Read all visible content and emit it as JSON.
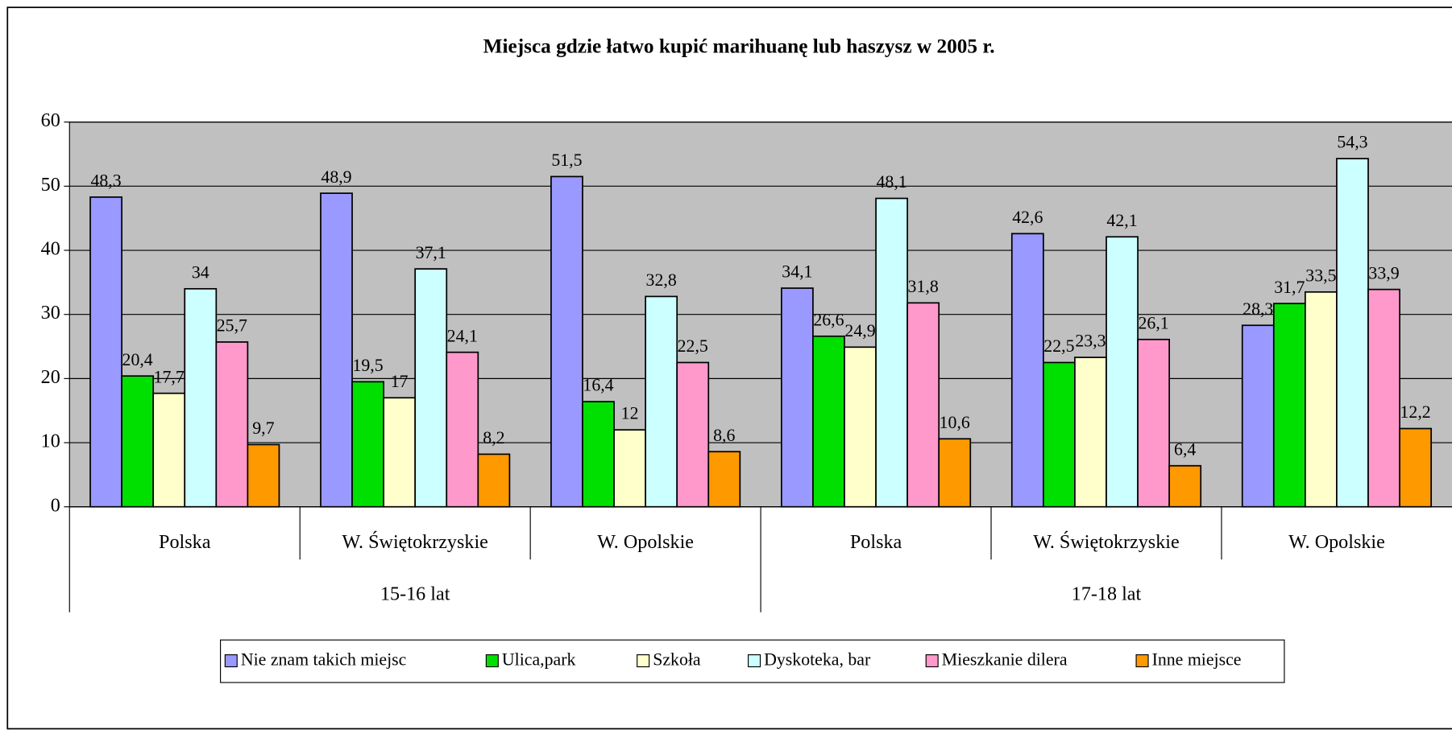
{
  "chart_data": {
    "type": "bar",
    "title": "Miejsca gdzie łatwo kupić marihuanę lub haszysz w 2005 r.",
    "groups": [
      {
        "name": "15-16 lat",
        "categories": [
          "Polska",
          "W. Świętokrzyskie",
          "W. Opolskie"
        ]
      },
      {
        "name": "17-18 lat",
        "categories": [
          "Polska",
          "W. Świętokrzyskie",
          "W. Opolskie"
        ]
      }
    ],
    "series": [
      {
        "name": "Nie znam takich miejsc",
        "color": "#9999ff",
        "values": [
          48.3,
          48.9,
          51.5,
          34.1,
          42.6,
          28.3
        ],
        "value_labels": [
          "48,3",
          "48,9",
          "51,5",
          "34,1",
          "42,6",
          "28,3"
        ]
      },
      {
        "name": "Ulica,park",
        "color": "#00e000",
        "values": [
          20.4,
          19.5,
          16.4,
          26.6,
          22.5,
          31.7
        ],
        "value_labels": [
          "20,4",
          "19,5",
          "16,4",
          "26,6",
          "22,5",
          "31,7"
        ]
      },
      {
        "name": "Szkoła",
        "color": "#ffffcc",
        "values": [
          17.7,
          17,
          12,
          24.9,
          23.3,
          33.5
        ],
        "value_labels": [
          "17,7",
          "17",
          "12",
          "24,9",
          "23,3",
          "33,5"
        ]
      },
      {
        "name": "Dyskoteka, bar",
        "color": "#ccffff",
        "values": [
          34,
          37.1,
          32.8,
          48.1,
          42.1,
          54.3
        ],
        "value_labels": [
          "34",
          "37,1",
          "32,8",
          "48,1",
          "42,1",
          "54,3"
        ]
      },
      {
        "name": "Mieszkanie dilera",
        "color": "#ff99cc",
        "values": [
          25.7,
          24.1,
          22.5,
          31.8,
          26.1,
          33.9
        ],
        "value_labels": [
          "25,7",
          "24,1",
          "22,5",
          "31,8",
          "26,1",
          "33,9"
        ]
      },
      {
        "name": "Inne miejsce",
        "color": "#ff9900",
        "values": [
          9.7,
          8.2,
          8.6,
          10.6,
          6.4,
          12.2
        ],
        "value_labels": [
          "9,7",
          "8,2",
          "8,6",
          "10,6",
          "6,4",
          "12,2"
        ]
      }
    ],
    "ylim": [
      0,
      60
    ],
    "yticks": [
      0,
      10,
      20,
      30,
      40,
      50,
      60
    ],
    "grid": true,
    "legend": "bottom"
  }
}
